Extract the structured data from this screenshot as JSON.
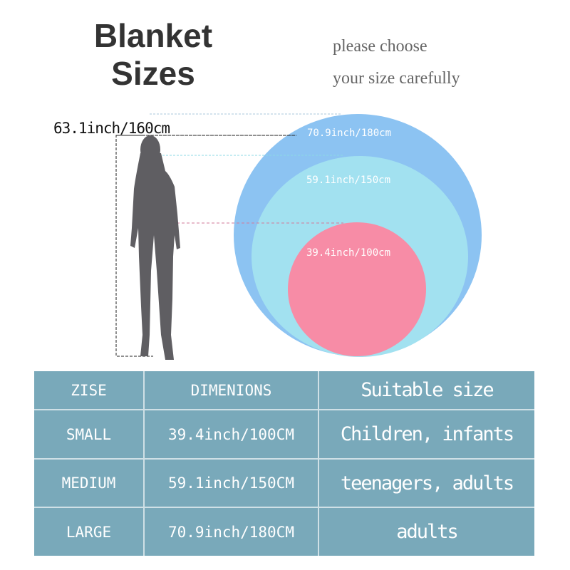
{
  "header": {
    "title_line1": "Blanket",
    "title_line2": "Sizes",
    "subtitle_line1": "please choose",
    "subtitle_line2": "your size carefully"
  },
  "diagram": {
    "person_height": "63.1inch/160cm",
    "circles": [
      {
        "label": "70.9inch/180cm",
        "color": "#8cc3f2"
      },
      {
        "label": "59.1inch/150cm",
        "color": "#a2e1f0"
      },
      {
        "label": "39.4inch/100cm",
        "color": "#f78ca6"
      }
    ],
    "silhouette_color": "#5f5e62"
  },
  "table": {
    "color": "#79a9ba",
    "headers": [
      "ZISE",
      "DIMENIONS",
      "Suitable size"
    ],
    "rows": [
      [
        "SMALL",
        "39.4inch/100CM",
        "Children, infants"
      ],
      [
        "MEDIUM",
        "59.1inch/150CM",
        "teenagers, adults"
      ],
      [
        "LARGE",
        "70.9inch/180CM",
        "adults"
      ]
    ]
  }
}
